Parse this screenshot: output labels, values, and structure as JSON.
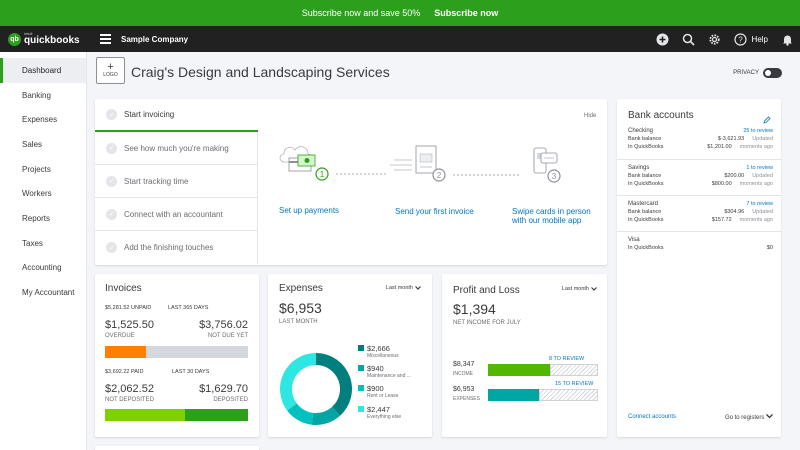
{
  "promo": {
    "text": "Subscribe now and save 50%",
    "cta": "Subscribe now"
  },
  "brand": {
    "intuit": "intuit",
    "name": "quickbooks",
    "mark": "qb"
  },
  "topnav": {
    "company": "Sample Company",
    "help": "Help"
  },
  "sidebar": {
    "items": [
      {
        "label": "Dashboard",
        "active": true
      },
      {
        "label": "Banking"
      },
      {
        "label": "Expenses"
      },
      {
        "label": "Sales"
      },
      {
        "label": "Projects"
      },
      {
        "label": "Workers"
      },
      {
        "label": "Reports"
      },
      {
        "label": "Taxes"
      },
      {
        "label": "Accounting"
      },
      {
        "label": "My Accountant"
      }
    ]
  },
  "header": {
    "logo_plus": "+",
    "logo_label": "LOGO",
    "title": "Craig's Design and Landscaping Services",
    "privacy": "PRIVACY"
  },
  "setup": {
    "steps": [
      "Start invoicing",
      "See how much you're making",
      "Start tracking time",
      "Connect with an accountant",
      "Add the finishing touches"
    ],
    "hide": "Hide",
    "numbers": [
      "1",
      "2",
      "3"
    ],
    "links": [
      "Set up payments",
      "Send your first invoice",
      "Swipe cards in person with our mobile app"
    ]
  },
  "bank": {
    "title": "Bank accounts",
    "accounts": [
      {
        "name": "Checking",
        "review": "25 to review",
        "bank_label": "Bank balance",
        "bank": "$-3,621.93",
        "qb_label": "In QuickBooks",
        "qb": "$1,201.00",
        "updated": "Updated",
        "updated2": "moments ago"
      },
      {
        "name": "Savings",
        "review": "1 to review",
        "bank_label": "Bank balance",
        "bank": "$200.00",
        "qb_label": "In QuickBooks",
        "qb": "$800.00",
        "updated": "Updated",
        "updated2": "moments ago"
      },
      {
        "name": "Mastercard",
        "review": "7 to review",
        "bank_label": "Bank balance",
        "bank": "$304.96",
        "qb_label": "In QuickBooks",
        "qb": "$157.72",
        "updated": "Updated",
        "updated2": "moments ago"
      },
      {
        "name": "Visa",
        "qb_label": "In QuickBooks",
        "qb": "$0"
      }
    ],
    "connect": "Connect accounts",
    "goto": "Go to registers"
  },
  "invoices": {
    "title": "Invoices",
    "unpaid_amount": "$5,281.52 UNPAID",
    "unpaid_period": "LAST 365 DAYS",
    "overdue": "$1,525.50",
    "overdue_label": "OVERDUE",
    "not_due": "$3,756.02",
    "not_due_label": "NOT DUE YET",
    "paid_amount": "$3,692.22 PAID",
    "paid_period": "LAST 30 DAYS",
    "not_deposited": "$2,062.52",
    "not_deposited_label": "NOT DEPOSITED",
    "deposited": "$1,629.70",
    "deposited_label": "DEPOSITED",
    "colors": {
      "overdue": "#ff8000",
      "not_due": "#d4d7dc",
      "not_deposited": "#7fd000",
      "deposited": "#2ca01c"
    }
  },
  "expenses": {
    "title": "Expenses",
    "period": "Last month",
    "total": "$6,953",
    "total_label": "LAST MONTH",
    "categories": [
      {
        "value": "$2,666",
        "label": "Miscellaneous",
        "amount": 2666,
        "color": "#007f7e"
      },
      {
        "value": "$940",
        "label": "Maintenance and ...",
        "amount": 940,
        "color": "#00a6a4"
      },
      {
        "value": "$900",
        "label": "Rent or Lease",
        "amount": 900,
        "color": "#00c1bf"
      },
      {
        "value": "$2,447",
        "label": "Everything else",
        "amount": 2447,
        "color": "#2ee6e2"
      }
    ]
  },
  "pl": {
    "title": "Profit and Loss",
    "period": "Last month",
    "net": "$1,394",
    "net_label": "NET INCOME FOR JULY",
    "income": "$8,347",
    "income_label": "INCOME",
    "income_review": "8 TO REVIEW",
    "expenses": "$6,953",
    "expenses_label": "EXPENSES",
    "expenses_review": "15 TO REVIEW",
    "colors": {
      "income": "#53b700",
      "expenses": "#00a6a4"
    }
  }
}
